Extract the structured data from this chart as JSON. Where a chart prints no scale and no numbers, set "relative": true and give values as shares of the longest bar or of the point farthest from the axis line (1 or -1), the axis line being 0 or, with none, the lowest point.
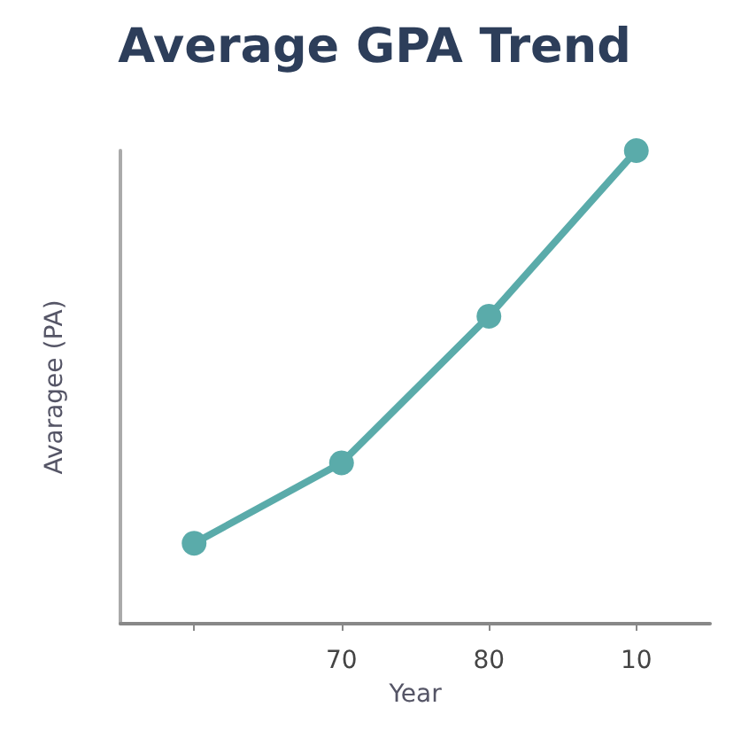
{
  "chart_data": {
    "type": "line",
    "title": "Average GPA Trend",
    "xlabel": "Year",
    "ylabel": "Avaragee (PA)",
    "categories": [
      null,
      "70",
      "80",
      "10"
    ],
    "series": [
      {
        "color": "#5aabaa",
        "values": [
          0.17,
          0.34,
          0.65,
          1
        ]
      }
    ],
    "relative": true,
    "marker": "circle",
    "line_style": "solid"
  }
}
